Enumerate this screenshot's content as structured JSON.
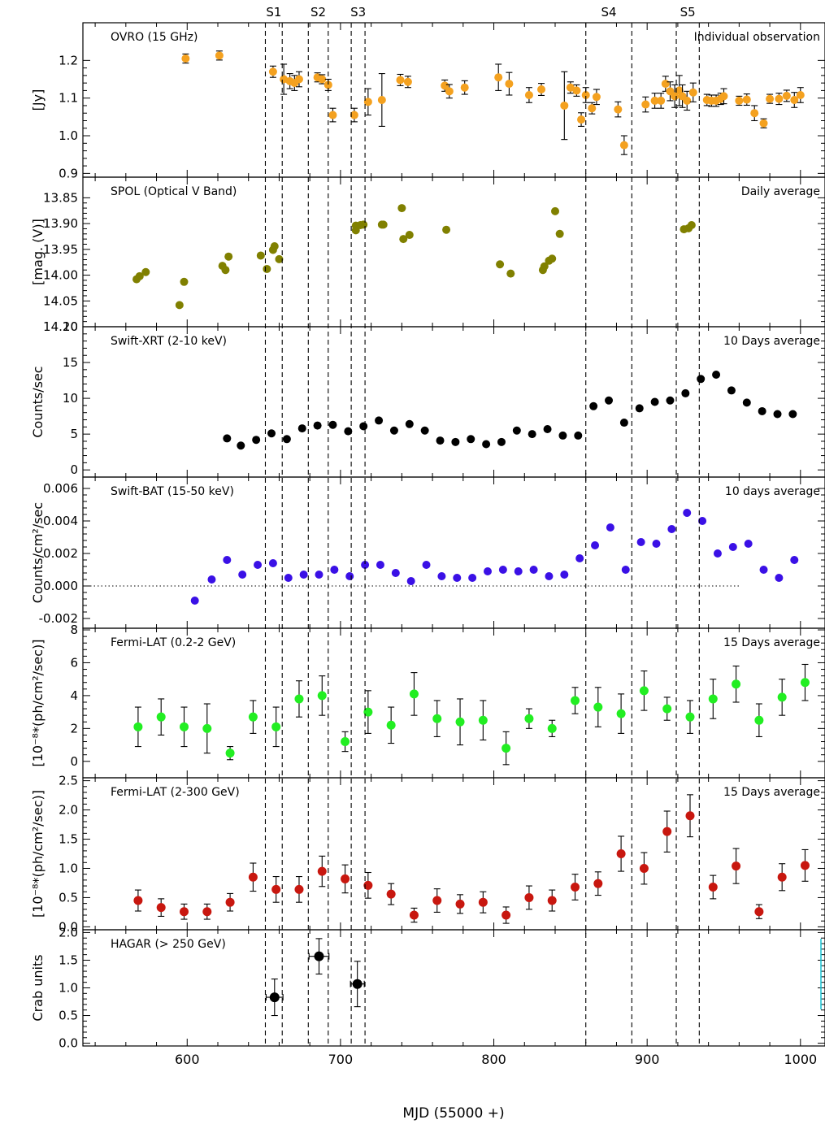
{
  "xlabel": "MJD (55000 +)",
  "xlim": [
    532,
    1016
  ],
  "x_ticks": [
    600,
    700,
    800,
    900,
    1000
  ],
  "periods": [
    {
      "label": "S1",
      "start": 651,
      "end": 662
    },
    {
      "label": "S2",
      "start": 679,
      "end": 692
    },
    {
      "label": "S3",
      "start": 707,
      "end": 716
    },
    {
      "label": "S4",
      "start": 860,
      "end": 890
    },
    {
      "label": "S5",
      "start": 919,
      "end": 934
    }
  ],
  "chart_data": [
    {
      "type": "scatter",
      "title": "OVRO (15 GHz)",
      "note": "Individual observation",
      "ylabel": "[Jy]",
      "ylim": [
        0.89,
        1.3
      ],
      "yticks": [
        0.9,
        1.0,
        1.1,
        1.2
      ],
      "ytick_labels": [
        "0.9",
        "1.0",
        "1.1",
        "1.2"
      ],
      "color": "#f4a11f",
      "marker_r": 5,
      "points": [
        [
          599,
          1.205,
          0.012
        ],
        [
          621,
          1.213,
          0.012
        ],
        [
          656,
          1.17,
          0.015
        ],
        [
          663,
          1.15,
          0.04
        ],
        [
          667,
          1.145,
          0.02
        ],
        [
          670,
          1.14,
          0.02
        ],
        [
          673,
          1.15,
          0.02
        ],
        [
          685,
          1.155,
          0.012
        ],
        [
          688,
          1.15,
          0.012
        ],
        [
          692,
          1.135,
          0.015
        ],
        [
          695,
          1.055,
          0.018
        ],
        [
          709,
          1.055,
          0.018
        ],
        [
          718,
          1.09,
          0.035
        ],
        [
          727,
          1.095,
          0.07
        ],
        [
          739,
          1.148,
          0.015
        ],
        [
          744,
          1.143,
          0.015
        ],
        [
          768,
          1.133,
          0.015
        ],
        [
          771,
          1.118,
          0.018
        ],
        [
          781,
          1.128,
          0.018
        ],
        [
          803,
          1.155,
          0.035
        ],
        [
          810,
          1.138,
          0.03
        ],
        [
          823,
          1.108,
          0.02
        ],
        [
          831,
          1.123,
          0.016
        ],
        [
          846,
          1.08,
          0.09
        ],
        [
          850,
          1.128,
          0.015
        ],
        [
          854,
          1.12,
          0.015
        ],
        [
          857,
          1.043,
          0.018
        ],
        [
          860,
          1.108,
          0.02
        ],
        [
          864,
          1.073,
          0.015
        ],
        [
          867,
          1.103,
          0.02
        ],
        [
          881,
          1.07,
          0.02
        ],
        [
          885,
          0.975,
          0.025
        ],
        [
          899,
          1.083,
          0.02
        ],
        [
          905,
          1.093,
          0.02
        ],
        [
          909,
          1.093,
          0.02
        ],
        [
          912,
          1.138,
          0.02
        ],
        [
          915,
          1.118,
          0.025
        ],
        [
          918,
          1.105,
          0.03
        ],
        [
          921,
          1.12,
          0.04
        ],
        [
          923,
          1.105,
          0.03
        ],
        [
          926,
          1.093,
          0.025
        ],
        [
          930,
          1.115,
          0.025
        ],
        [
          939,
          1.095,
          0.015
        ],
        [
          942,
          1.093,
          0.015
        ],
        [
          945,
          1.093,
          0.015
        ],
        [
          948,
          1.098,
          0.015
        ],
        [
          950,
          1.105,
          0.02
        ],
        [
          960,
          1.093,
          0.012
        ],
        [
          965,
          1.096,
          0.015
        ],
        [
          970,
          1.06,
          0.02
        ],
        [
          976,
          1.033,
          0.012
        ],
        [
          980,
          1.098,
          0.012
        ],
        [
          986,
          1.098,
          0.015
        ],
        [
          991,
          1.106,
          0.015
        ],
        [
          996,
          1.095,
          0.02
        ],
        [
          1000,
          1.108,
          0.02
        ]
      ]
    },
    {
      "type": "scatter",
      "title": "SPOL (Optical V Band)",
      "note": "Daily average",
      "ylabel": "[mag. (V)]",
      "ylim": [
        14.1,
        13.81
      ],
      "yticks": [
        13.85,
        13.9,
        13.95,
        14.0,
        14.05,
        14.1
      ],
      "ytick_labels": [
        "13.85",
        "13.90",
        "13.95",
        "14.00",
        "14.05",
        "14.10"
      ],
      "color": "#808000",
      "marker_r": 5,
      "points": [
        [
          567,
          14.008
        ],
        [
          569,
          14.002
        ],
        [
          573,
          13.994
        ],
        [
          595,
          14.058
        ],
        [
          598,
          14.013
        ],
        [
          623,
          13.982
        ],
        [
          625,
          13.99
        ],
        [
          627,
          13.964
        ],
        [
          648,
          13.962
        ],
        [
          652,
          13.988
        ],
        [
          656,
          13.951
        ],
        [
          657,
          13.944
        ],
        [
          660,
          13.969
        ],
        [
          710,
          13.904
        ],
        [
          710,
          13.913
        ],
        [
          713,
          13.903
        ],
        [
          715,
          13.902
        ],
        [
          727,
          13.902
        ],
        [
          728,
          13.902
        ],
        [
          740,
          13.87
        ],
        [
          741,
          13.93
        ],
        [
          745,
          13.922
        ],
        [
          769,
          13.912
        ],
        [
          804,
          13.979
        ],
        [
          811,
          13.997
        ],
        [
          832,
          13.99
        ],
        [
          833,
          13.983
        ],
        [
          836,
          13.972
        ],
        [
          838,
          13.968
        ],
        [
          840,
          13.876
        ],
        [
          843,
          13.92
        ],
        [
          924,
          13.911
        ],
        [
          927,
          13.909
        ],
        [
          929,
          13.903
        ]
      ]
    },
    {
      "type": "scatter",
      "title": "Swift-XRT (2-10 keV)",
      "note": "10 Days average",
      "ylabel": "Counts/sec",
      "ylim": [
        -1,
        20
      ],
      "yticks": [
        0,
        5,
        10,
        15,
        20
      ],
      "ytick_labels": [
        "0",
        "5",
        "10",
        "15",
        "20"
      ],
      "color": "#000000",
      "marker_r": 5,
      "points": [
        [
          626,
          4.4
        ],
        [
          635,
          3.4
        ],
        [
          645,
          4.2
        ],
        [
          655,
          5.1
        ],
        [
          665,
          4.3
        ],
        [
          675,
          5.8
        ],
        [
          685,
          6.2
        ],
        [
          695,
          6.3
        ],
        [
          705,
          5.4
        ],
        [
          715,
          6.1
        ],
        [
          725,
          6.9
        ],
        [
          735,
          5.5
        ],
        [
          745,
          6.4
        ],
        [
          755,
          5.5
        ],
        [
          765,
          4.1
        ],
        [
          775,
          3.9
        ],
        [
          785,
          4.3
        ],
        [
          795,
          3.6
        ],
        [
          805,
          3.9
        ],
        [
          815,
          5.5
        ],
        [
          825,
          5.0
        ],
        [
          835,
          5.7
        ],
        [
          845,
          4.8
        ],
        [
          855,
          4.8
        ],
        [
          865,
          8.9
        ],
        [
          875,
          9.7
        ],
        [
          885,
          6.6
        ],
        [
          895,
          8.6
        ],
        [
          905,
          9.5
        ],
        [
          915,
          9.7
        ],
        [
          925,
          10.7
        ],
        [
          935,
          12.7
        ],
        [
          945,
          13.3
        ],
        [
          955,
          11.1
        ],
        [
          965,
          9.4
        ],
        [
          975,
          8.2
        ],
        [
          985,
          7.8
        ],
        [
          995,
          7.8
        ]
      ]
    },
    {
      "type": "scatter",
      "title": "Swift-BAT (15-50 keV)",
      "note": "10 days average",
      "ylabel": "Counts/cm²/sec",
      "ylim": [
        -0.0026,
        0.0067
      ],
      "yticks": [
        -0.002,
        0.0,
        0.002,
        0.004,
        0.006
      ],
      "ytick_labels": [
        "-0.002",
        "0.000",
        "0.002",
        "0.004",
        "0.006"
      ],
      "color": "#3a10e6",
      "marker_r": 5,
      "zero_line": [
        532,
        960
      ],
      "points": [
        [
          605,
          -0.0009
        ],
        [
          616,
          0.0004
        ],
        [
          626,
          0.0016
        ],
        [
          636,
          0.0007
        ],
        [
          646,
          0.0013
        ],
        [
          656,
          0.0014
        ],
        [
          666,
          0.0005
        ],
        [
          676,
          0.0007
        ],
        [
          686,
          0.0007
        ],
        [
          696,
          0.001
        ],
        [
          706,
          0.0006
        ],
        [
          716,
          0.0013
        ],
        [
          726,
          0.0013
        ],
        [
          736,
          0.0008
        ],
        [
          746,
          0.0003
        ],
        [
          756,
          0.0013
        ],
        [
          766,
          0.0006
        ],
        [
          776,
          0.0005
        ],
        [
          786,
          0.0005
        ],
        [
          796,
          0.0009
        ],
        [
          806,
          0.001
        ],
        [
          816,
          0.0009
        ],
        [
          826,
          0.001
        ],
        [
          836,
          0.0006
        ],
        [
          846,
          0.0007
        ],
        [
          856,
          0.0017
        ],
        [
          866,
          0.0025
        ],
        [
          876,
          0.0036
        ],
        [
          886,
          0.001
        ],
        [
          896,
          0.0027
        ],
        [
          906,
          0.0026
        ],
        [
          916,
          0.0035
        ],
        [
          926,
          0.0045
        ],
        [
          936,
          0.004
        ],
        [
          946,
          0.002
        ],
        [
          956,
          0.0024
        ],
        [
          966,
          0.0026
        ],
        [
          976,
          0.001
        ],
        [
          986,
          0.0005
        ],
        [
          996,
          0.0016
        ]
      ]
    },
    {
      "type": "scatter",
      "title": "Fermi-LAT (0.2-2 GeV)",
      "note": "15 Days average",
      "ylabel": "[10⁻⁸*(ph/cm²/sec)]",
      "ylim": [
        -1.0,
        8.1
      ],
      "yticks": [
        0,
        2,
        4,
        6,
        8
      ],
      "ytick_labels": [
        "0",
        "2",
        "4",
        "6",
        "8"
      ],
      "color": "#22ee22",
      "marker_r": 5.5,
      "points": [
        [
          568,
          2.1,
          1.2
        ],
        [
          583,
          2.7,
          1.1
        ],
        [
          598,
          2.1,
          1.2
        ],
        [
          613,
          2.0,
          1.5
        ],
        [
          628,
          0.5,
          0.4
        ],
        [
          643,
          2.7,
          1.0
        ],
        [
          658,
          2.1,
          1.2
        ],
        [
          673,
          3.8,
          1.1
        ],
        [
          688,
          4.0,
          1.2
        ],
        [
          703,
          1.2,
          0.6
        ],
        [
          718,
          3.0,
          1.3
        ],
        [
          733,
          2.2,
          1.1
        ],
        [
          748,
          4.1,
          1.3
        ],
        [
          763,
          2.6,
          1.1
        ],
        [
          778,
          2.4,
          1.4
        ],
        [
          793,
          2.5,
          1.2
        ],
        [
          808,
          0.8,
          1.0
        ],
        [
          823,
          2.6,
          0.6
        ],
        [
          838,
          2.0,
          0.5
        ],
        [
          853,
          3.7,
          0.8
        ],
        [
          868,
          3.3,
          1.2
        ],
        [
          883,
          2.9,
          1.2
        ],
        [
          898,
          4.3,
          1.2
        ],
        [
          913,
          3.2,
          0.7
        ],
        [
          928,
          2.7,
          1.0
        ],
        [
          943,
          3.8,
          1.2
        ],
        [
          958,
          4.7,
          1.1
        ],
        [
          973,
          2.5,
          1.0
        ],
        [
          988,
          3.9,
          1.1
        ],
        [
          1003,
          4.8,
          1.1
        ]
      ]
    },
    {
      "type": "scatter",
      "title": "Fermi-LAT (2-300 GeV)",
      "note": "15 Days average",
      "ylabel": "[10⁻⁸*(ph/cm²/sec)]",
      "ylim": [
        -0.05,
        2.55
      ],
      "yticks": [
        0.0,
        0.5,
        1.0,
        1.5,
        2.0,
        2.5
      ],
      "ytick_labels": [
        "0.0",
        "0.5",
        "1.0",
        "1.5",
        "2.0",
        "2.5"
      ],
      "color": "#c8170f",
      "marker_r": 5.5,
      "points": [
        [
          568,
          0.45,
          0.18
        ],
        [
          583,
          0.33,
          0.15
        ],
        [
          598,
          0.26,
          0.13
        ],
        [
          613,
          0.26,
          0.13
        ],
        [
          628,
          0.42,
          0.15
        ],
        [
          643,
          0.85,
          0.24
        ],
        [
          658,
          0.64,
          0.22
        ],
        [
          673,
          0.64,
          0.22
        ],
        [
          688,
          0.95,
          0.26
        ],
        [
          703,
          0.82,
          0.24
        ],
        [
          718,
          0.71,
          0.22
        ],
        [
          733,
          0.56,
          0.18
        ],
        [
          748,
          0.2,
          0.12
        ],
        [
          763,
          0.45,
          0.2
        ],
        [
          778,
          0.39,
          0.16
        ],
        [
          793,
          0.42,
          0.18
        ],
        [
          808,
          0.2,
          0.14
        ],
        [
          823,
          0.5,
          0.2
        ],
        [
          838,
          0.45,
          0.18
        ],
        [
          853,
          0.68,
          0.22
        ],
        [
          868,
          0.74,
          0.2
        ],
        [
          883,
          1.25,
          0.3
        ],
        [
          898,
          1.0,
          0.27
        ],
        [
          913,
          1.63,
          0.35
        ],
        [
          928,
          1.9,
          0.36
        ],
        [
          943,
          0.68,
          0.2
        ],
        [
          958,
          1.04,
          0.3
        ],
        [
          973,
          0.26,
          0.12
        ],
        [
          988,
          0.85,
          0.23
        ],
        [
          1003,
          1.05,
          0.27
        ]
      ]
    },
    {
      "type": "scatter",
      "title": "HAGAR (> 250 GeV)",
      "note": "",
      "ylabel": "Crab units",
      "ylim": [
        -0.05,
        2.05
      ],
      "yticks": [
        0.0,
        0.5,
        1.0,
        1.5,
        2.0
      ],
      "ytick_labels": [
        "0.0",
        "0.5",
        "1.0",
        "1.5",
        "2.0"
      ],
      "color": "#000000",
      "marker_r": 6,
      "points": [
        [
          657,
          0.83,
          0.33,
          5.5
        ],
        [
          686,
          1.57,
          0.32,
          6.5
        ],
        [
          711,
          1.07,
          0.41,
          4.5
        ]
      ]
    }
  ]
}
